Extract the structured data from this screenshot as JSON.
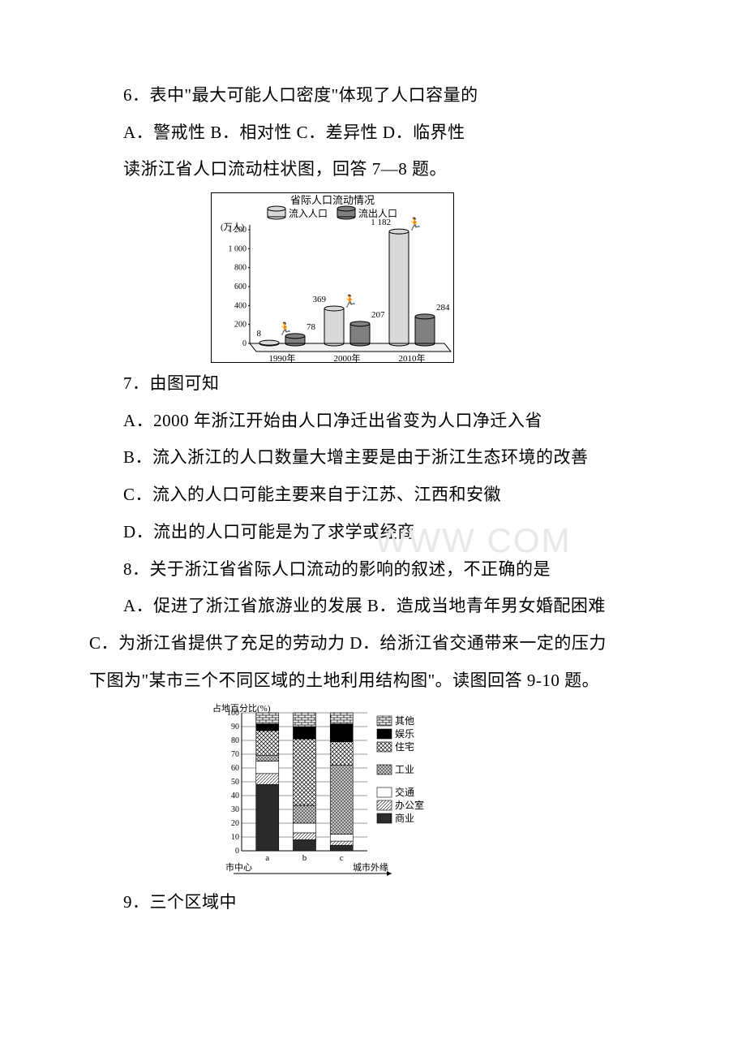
{
  "q6": {
    "text": "6．表中\"最大可能人口密度\"体现了人口容量的",
    "opts": "A．警戒性  B．相对性  C．差异性  D．临界性"
  },
  "intro78": "读浙江省人口流动柱状图，回答 7—8 题。",
  "chart1": {
    "type": "bar",
    "title": "省际人口流动情况",
    "legend": [
      "流入人口",
      "流出人口"
    ],
    "ylabel": "(万人)",
    "ymax": 1200,
    "ytick_step": 200,
    "yticks": [
      "0",
      "200",
      "400",
      "600",
      "800",
      "1 000",
      "1 200"
    ],
    "categories": [
      "1990年",
      "2000年",
      "2010年"
    ],
    "series_in": [
      8,
      369,
      1182
    ],
    "series_out": [
      78,
      207,
      284
    ],
    "in_label": [
      "8",
      "369",
      "1 182"
    ],
    "out_label": [
      "78",
      "207",
      "284"
    ],
    "bar_fill_in": "#d8d8d8",
    "bar_fill_out": "#808080",
    "bar_edge": "#000000",
    "ellipse_edge": "#000000",
    "axis_color": "#000000",
    "font_size_label": 12,
    "font_size_title": 13,
    "runner_glyph": "🏃"
  },
  "q7": {
    "stem": "7．由图可知",
    "A": "A．2000 年浙江开始由人口净迁出省变为人口净迁入省",
    "B": "B．流入浙江的人口数量大增主要是由于浙江生态环境的改善",
    "C": "C．流入的人口可能主要来自于江苏、江西和安徽",
    "D": "D．流出的人口可能是为了求学或经商"
  },
  "q8": {
    "stem": "8．关于浙江省省际人口流动的影响的叙述，不正确的是",
    "A": "A．促进了浙江省旅游业的发展 B．造成当地青年男女婚配困难",
    "C": "C．为浙江省提供了充足的劳动力 D．给浙江省交通带来一定的压力"
  },
  "intro910": "下图为\"某市三个不同区域的土地利用结构图\"。读图回答 9-10 题。",
  "chart2": {
    "type": "stacked-bar",
    "ylabel": "占地百分比(%)",
    "ymax": 100,
    "ytick_step": 10,
    "yticks": [
      "0",
      "10",
      "20",
      "30",
      "40",
      "50",
      "60",
      "70",
      "80",
      "90",
      "100"
    ],
    "categories_labels": [
      "a",
      "b",
      "c"
    ],
    "x_left_label": "市中心",
    "x_right_label": "城市外缘",
    "legend_top_to_bottom": [
      "其他",
      "娱乐",
      "住宅",
      "工业",
      "交通",
      "办公室",
      "商业"
    ],
    "stack_order_bottom_to_top": [
      "商业",
      "办公室",
      "交通",
      "工业",
      "住宅",
      "娱乐",
      "其他"
    ],
    "data": {
      "a": {
        "商业": 48,
        "办公室": 8,
        "交通": 9,
        "工业": 4,
        "住宅": 18,
        "娱乐": 5,
        "其他": 8
      },
      "b": {
        "商业": 8,
        "办公室": 5,
        "交通": 7,
        "工业": 13,
        "住宅": 48,
        "娱乐": 9,
        "其他": 10
      },
      "c": {
        "商业": 4,
        "办公室": 3,
        "交通": 5,
        "工业": 50,
        "住宅": 17,
        "娱乐": 13,
        "其他": 8
      }
    },
    "patterns": {
      "商业": "#2a2a2a",
      "办公室": "diag-fine",
      "交通": "#ffffff",
      "工业": "dots",
      "住宅": "crosshatch",
      "娱乐": "#000000",
      "其他": "bricks"
    },
    "bg_color": "#ffffff",
    "axis_color": "#000000",
    "grid_color": "#000000",
    "font_size": 12
  },
  "q9": {
    "stem": "9．三个区域中"
  },
  "watermark": "WWW      COM"
}
